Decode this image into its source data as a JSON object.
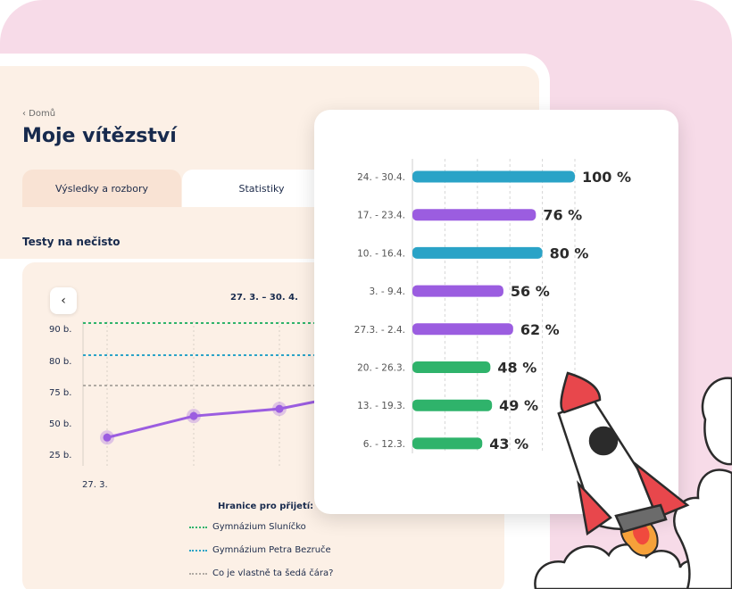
{
  "breadcrumb": "‹ Domů",
  "page_title": "Moje vítězství",
  "tabs": [
    {
      "label": "Výsledky a rozbory",
      "active": false
    },
    {
      "label": "Statistiky",
      "active": true
    }
  ],
  "section_title": "Testy na nečisto",
  "line_chart": {
    "back_icon": "chevron-left-icon",
    "date_range": "27. 3. – 30. 4.",
    "y_ticks": [
      "90 b.",
      "80 b.",
      "75 b.",
      "50 b.",
      "25 b."
    ],
    "x_tick": "27. 3.",
    "points": [
      36,
      54,
      60,
      70
    ],
    "thresholds": [
      {
        "name": "Gymnázium Sluníčko",
        "value": 90,
        "color": "#2fb36b"
      },
      {
        "name": "Gymnázium Petra Bezruče",
        "value": 80,
        "color": "#2aa3c7"
      },
      {
        "name": "Co je vlastně ta šedá čára?",
        "value": 70,
        "color": "#b0aaa3"
      }
    ],
    "line_color": "#9b5de0"
  },
  "legend_title": "Hranice pro přijetí:",
  "chart_data": {
    "type": "bar",
    "orientation": "horizontal",
    "categories": [
      "24. - 30.4.",
      "17. - 23.4.",
      "10. - 16.4.",
      "3. - 9.4.",
      "27.3. - 2.4.",
      "20. - 26.3.",
      "13. - 19.3.",
      "6. - 12.3."
    ],
    "values": [
      100,
      76,
      80,
      56,
      62,
      48,
      49,
      43
    ],
    "value_labels": [
      "100 %",
      "76 %",
      "80 %",
      "56 %",
      "62 %",
      "48 %",
      "49 %",
      "43 %"
    ],
    "colors": [
      "#2aa3c7",
      "#9b5de0",
      "#2aa3c7",
      "#9b5de0",
      "#9b5de0",
      "#2fb36b",
      "#2fb36b",
      "#2fb36b"
    ],
    "xlim": [
      0,
      100
    ]
  }
}
